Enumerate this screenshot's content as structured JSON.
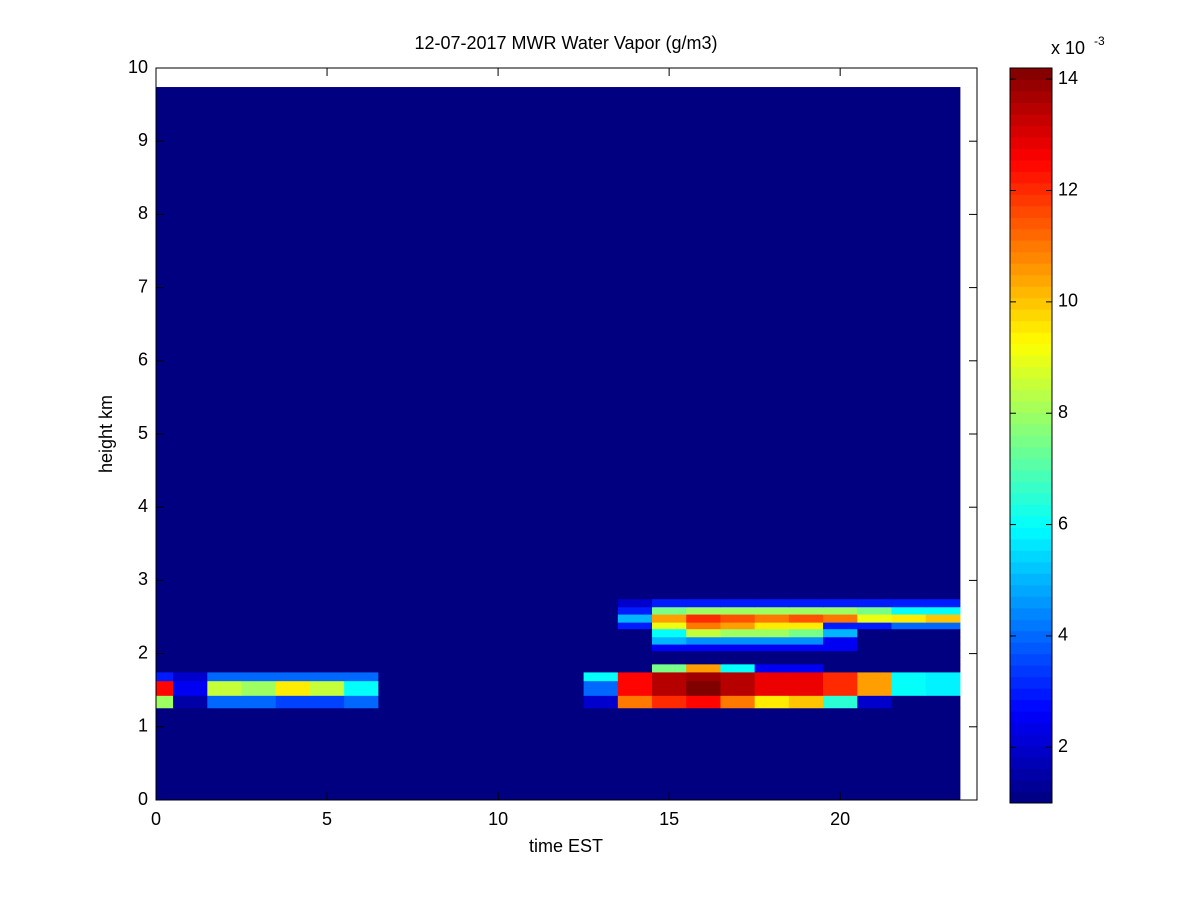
{
  "chart_data": {
    "type": "heatmap",
    "title": "12-07-2017 MWR Water Vapor (g/m3)",
    "xlabel": "time EST",
    "ylabel": "height km",
    "x": [
      0,
      1,
      2,
      3,
      4,
      5,
      6,
      7,
      8,
      9,
      10,
      11,
      12,
      13,
      14,
      15,
      16,
      17,
      18,
      19,
      20,
      21,
      22,
      23
    ],
    "y_edges": [
      0,
      1.26,
      1.43,
      1.63,
      1.75,
      1.86,
      1.95,
      2.04,
      2.13,
      2.23,
      2.34,
      2.43,
      2.54,
      2.64,
      2.75,
      9.74
    ],
    "values": [
      [
        1,
        1,
        1,
        1,
        1,
        1,
        1,
        1,
        1,
        1,
        1,
        1,
        1,
        1,
        1,
        1,
        1,
        1,
        1,
        1,
        1,
        1,
        1,
        1
      ],
      [
        8,
        1.5,
        4,
        4,
        3.5,
        3.5,
        4,
        1,
        1,
        1,
        1,
        1,
        1,
        2,
        11,
        12,
        12.5,
        11,
        9.5,
        10,
        6.5,
        2,
        1,
        1
      ],
      [
        12.5,
        2.5,
        8.5,
        8,
        9.5,
        8.5,
        6,
        1,
        1,
        1,
        1,
        1,
        1,
        4,
        12.5,
        13.5,
        14.2,
        13.5,
        12.8,
        12.8,
        12,
        10.5,
        6,
        5.8
      ],
      [
        3,
        2,
        4,
        4,
        4,
        4,
        4,
        1,
        1,
        1,
        1,
        1,
        1,
        6,
        12.5,
        13.5,
        13.8,
        13.5,
        12.8,
        12.8,
        12,
        10.5,
        6,
        5.8
      ],
      [
        1,
        1,
        1,
        1,
        1,
        1,
        1,
        1,
        1,
        1,
        1,
        1,
        1,
        1,
        1,
        7.5,
        10.5,
        6,
        2.5,
        2.5,
        1,
        1,
        1,
        1
      ],
      [
        1,
        1,
        1,
        1,
        1,
        1,
        1,
        1,
        1,
        1,
        1,
        1,
        1,
        1,
        1,
        1,
        1,
        1,
        1,
        1,
        1,
        1,
        1,
        1
      ],
      [
        1,
        1,
        1,
        1,
        1,
        1,
        1,
        1,
        1,
        1,
        1,
        1,
        1,
        1,
        1,
        1,
        1,
        1,
        1,
        1,
        1,
        1,
        1,
        1
      ],
      [
        1,
        1,
        1,
        1,
        1,
        1,
        1,
        1,
        1,
        1,
        1,
        1,
        1,
        1,
        1,
        2.5,
        2.5,
        2.5,
        2.5,
        2.5,
        2.5,
        1,
        1,
        1
      ],
      [
        1,
        1,
        1,
        1,
        1,
        1,
        1,
        1,
        1,
        1,
        1,
        1,
        1,
        1,
        1,
        5,
        4.5,
        4.5,
        4.5,
        4.5,
        2.5,
        1,
        1,
        1
      ],
      [
        1,
        1,
        1,
        1,
        1,
        1,
        1,
        1,
        1,
        1,
        1,
        1,
        1,
        1,
        1,
        6,
        8.5,
        8,
        8,
        7.5,
        5,
        1,
        1,
        1
      ],
      [
        1,
        1,
        1,
        1,
        1,
        1,
        1,
        1,
        1,
        1,
        1,
        1,
        1,
        1,
        3,
        9,
        11,
        10.5,
        9.5,
        9.5,
        3,
        3,
        4,
        4
      ],
      [
        1,
        1,
        1,
        1,
        1,
        1,
        1,
        1,
        1,
        1,
        1,
        1,
        1,
        1,
        5,
        10.5,
        12,
        11.5,
        11,
        11.5,
        11,
        9,
        9.5,
        10
      ],
      [
        1,
        1,
        1,
        1,
        1,
        1,
        1,
        1,
        1,
        1,
        1,
        1,
        1,
        1,
        3,
        7.5,
        8,
        8,
        8,
        8,
        8,
        7.5,
        6,
        6
      ],
      [
        1,
        1,
        1,
        1,
        1,
        1,
        1,
        1,
        1,
        1,
        1,
        1,
        1,
        1,
        2,
        3,
        3,
        3,
        3,
        3,
        3,
        3,
        3,
        3
      ],
      [
        1,
        1,
        1,
        1,
        1,
        1,
        1,
        1,
        1,
        1,
        1,
        1,
        1,
        1,
        1,
        1,
        1,
        1,
        1,
        1,
        1,
        1,
        1,
        1
      ]
    ],
    "xlim": [
      0,
      24
    ],
    "xticks": [
      0,
      5,
      10,
      15,
      20
    ],
    "ylim": [
      0,
      10
    ],
    "yticks": [
      0,
      1,
      2,
      3,
      4,
      5,
      6,
      7,
      8,
      9,
      10
    ],
    "clim": [
      1,
      14.2
    ],
    "cticks": [
      2,
      4,
      6,
      8,
      10,
      12,
      14
    ],
    "colormap": "jet",
    "colorbar_label": "x 10",
    "colorbar_exponent": "-3"
  }
}
